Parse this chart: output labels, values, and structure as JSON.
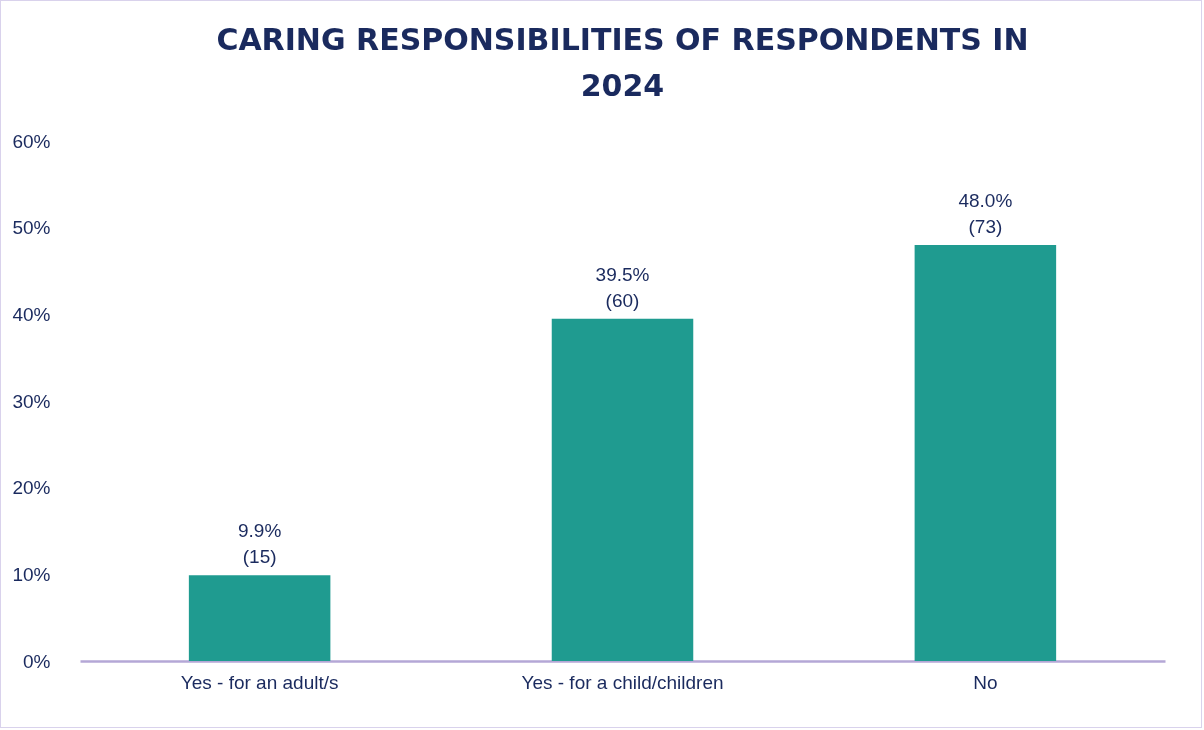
{
  "chart_data": {
    "type": "bar",
    "title": "CARING RESPONSIBILITIES OF RESPONDENTS IN 2024",
    "categories": [
      "Yes - for an adult/s",
      "Yes - for a child/children",
      "No"
    ],
    "values": [
      9.9,
      39.5,
      48.0
    ],
    "color": "#1f9b90",
    "value_labels": [
      "9.9%\n(15)",
      "39.5%\n(60)",
      "48.0%\n(73)"
    ],
    "ylim": [
      0,
      60
    ],
    "yticks": [
      {
        "value": 0,
        "label": "0%"
      },
      {
        "value": 10,
        "label": "10%"
      },
      {
        "value": 20,
        "label": "20%"
      },
      {
        "value": 30,
        "label": "30%"
      },
      {
        "value": 40,
        "label": "40%"
      },
      {
        "value": 50,
        "label": "50%"
      },
      {
        "value": 60,
        "label": "60%"
      }
    ],
    "grid": false
  }
}
